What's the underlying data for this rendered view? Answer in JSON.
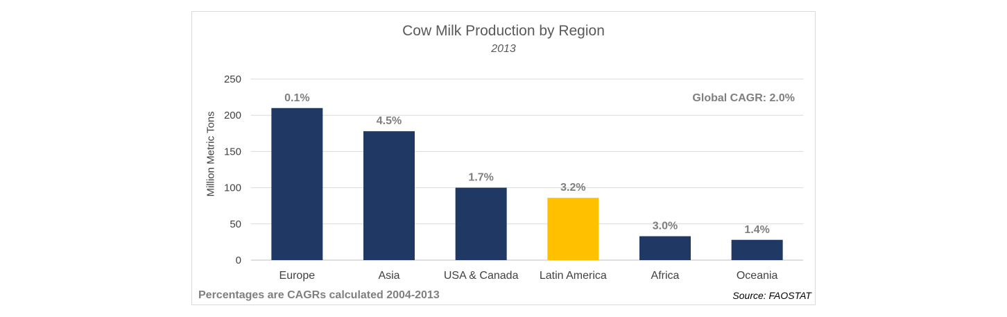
{
  "chart_data": {
    "type": "bar",
    "title": "Cow Milk Production by Region",
    "subtitle": "2013",
    "ylabel": "Million Metric Tons",
    "xlabel": "",
    "ylim": [
      0,
      250
    ],
    "yticks": [
      0,
      50,
      100,
      150,
      200,
      250
    ],
    "grid": true,
    "categories": [
      "Europe",
      "Asia",
      "USA & Canada",
      "Latin America",
      "Africa",
      "Oceania"
    ],
    "values": [
      210,
      178,
      100,
      86,
      33,
      28
    ],
    "data_labels": [
      "0.1%",
      "4.5%",
      "1.7%",
      "3.2%",
      "3.0%",
      "1.4%"
    ],
    "bar_colors": [
      "#1f3864",
      "#1f3864",
      "#1f3864",
      "#ffc000",
      "#1f3864",
      "#1f3864"
    ],
    "annotation": "Global CAGR: 2.0%",
    "footnote": "Percentages are CAGRs calculated 2004-2013",
    "source": "Source: FAOSTAT"
  }
}
